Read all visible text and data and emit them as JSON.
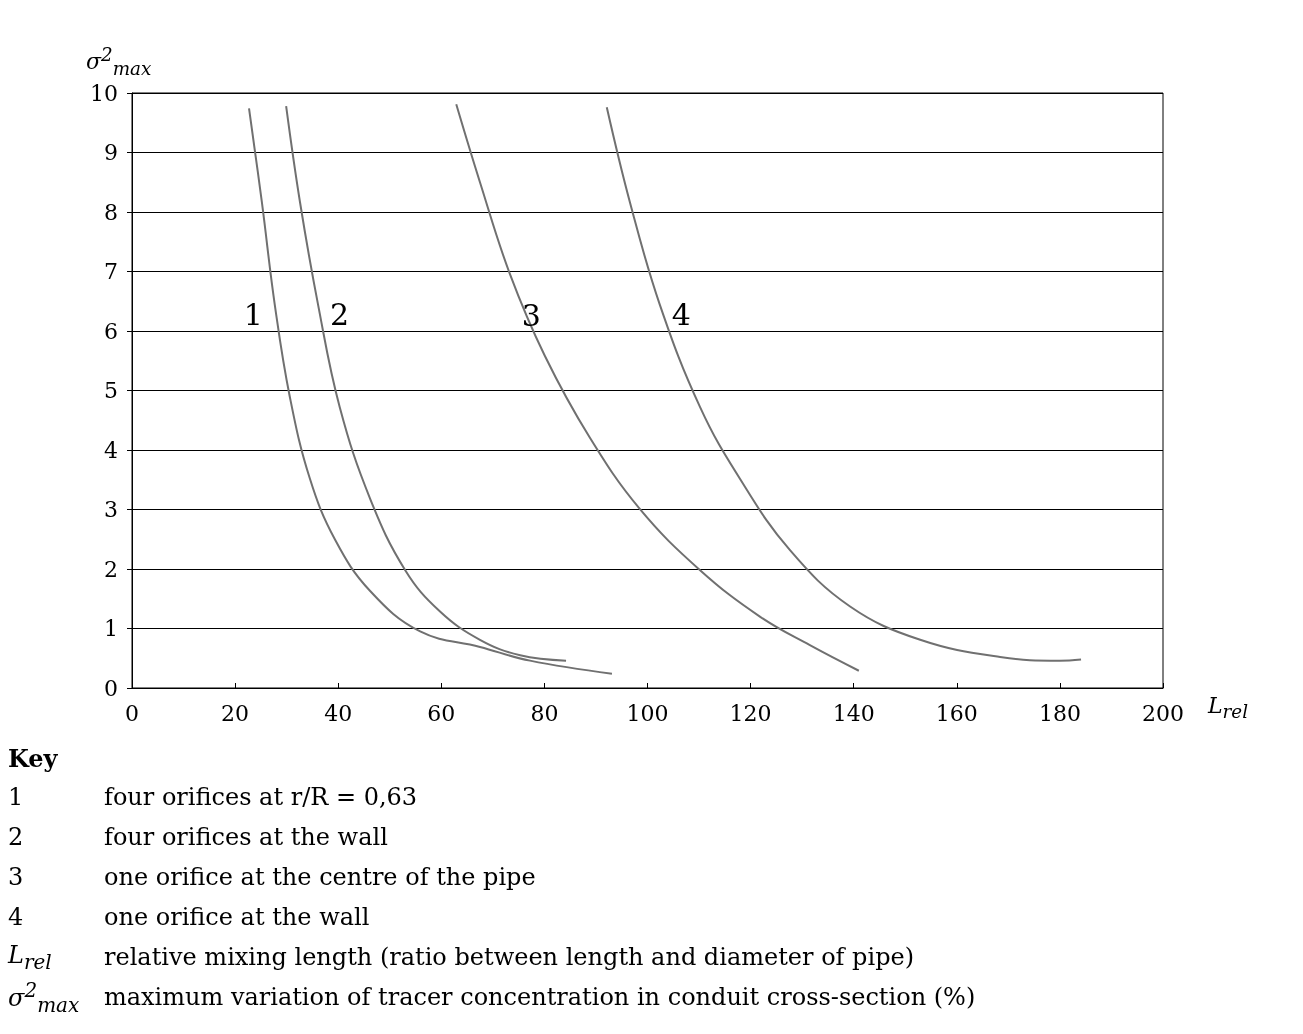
{
  "chart_data": {
    "type": "line",
    "xlabel": "L$_{rel}$",
    "ylabel": "σ$^{2}$$_{max}$",
    "xlim": [
      0,
      200
    ],
    "xticks": [
      0,
      20,
      40,
      60,
      80,
      100,
      120,
      140,
      160,
      180,
      200
    ],
    "ylim": [
      0,
      10
    ],
    "yticks": [
      0,
      1,
      2,
      3,
      4,
      5,
      6,
      7,
      8,
      9,
      10
    ],
    "grid": "y",
    "legend": false,
    "marker": "none",
    "line_style": "solid",
    "series": [
      {
        "name": "1",
        "color": "#707070",
        "x": [
          22.7,
          25.2,
          27.7,
          30.6,
          34.5,
          39.4,
          46.2,
          55.9,
          67.5,
          77.2,
          93.1
        ],
        "values": [
          9.74,
          8.16,
          6.44,
          4.9,
          3.52,
          2.49,
          1.63,
          0.95,
          0.69,
          0.46,
          0.24
        ]
      },
      {
        "name": "2",
        "color": "#707070",
        "x": [
          29.9,
          32.6,
          36.1,
          40.3,
          46.2,
          53.0,
          59.7,
          67.5,
          75.3,
          84.2
        ],
        "values": [
          9.78,
          8.16,
          6.44,
          4.72,
          3.18,
          1.98,
          1.29,
          0.81,
          0.55,
          0.46
        ]
      },
      {
        "name": "3",
        "color": "#707070",
        "x": [
          62.9,
          67.5,
          73.3,
          80.1,
          88.8,
          98.5,
          110.2,
          121.8,
          131.5,
          141.0
        ],
        "values": [
          9.81,
          8.5,
          6.96,
          5.58,
          4.21,
          3.01,
          1.98,
          1.2,
          0.72,
          0.29
        ]
      },
      {
        "name": "4",
        "color": "#707070",
        "x": [
          92.1,
          96.6,
          102.4,
          110.2,
          117.9,
          127.6,
          139.3,
          152.9,
          168.4,
          180.0,
          184.1
        ],
        "values": [
          9.76,
          8.16,
          6.44,
          4.72,
          3.52,
          2.32,
          1.37,
          0.81,
          0.52,
          0.46,
          0.48
        ]
      }
    ],
    "annotations": [
      "Key",
      "1 four orifices at r/R = 0,63",
      "2 four orifices at the wall",
      "3 one orifice at the centre of the pipe",
      "4 one orifice at the wall",
      "L$_{rel}$ relative mixing length (ratio between length and diameter of pipe)",
      "σ$^{2}$$_{max}$ maximum variation of tracer concentration in conduit cross-section (%)"
    ]
  }
}
